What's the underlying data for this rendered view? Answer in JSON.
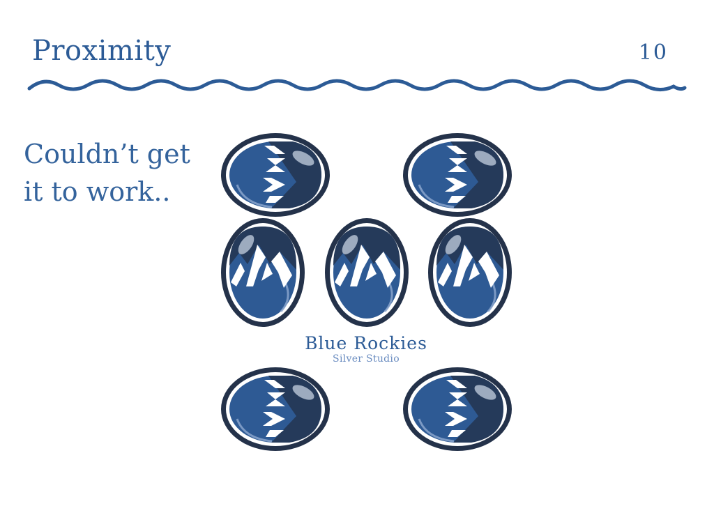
{
  "slide": {
    "title": "Proximity",
    "page_number": "10",
    "note_line1": "Couldn’t get",
    "note_line2": "it to work..",
    "accent_color": "#2c5b96"
  },
  "brand": {
    "name": "Blue Rockies",
    "subtitle": "Silver Studio"
  },
  "badges": [
    {
      "icon": "arrow-chevrons-badge-icon"
    },
    {
      "icon": "arrow-chevrons-badge-icon"
    },
    {
      "icon": "mountain-peaks-badge-icon"
    },
    {
      "icon": "mountain-peaks-badge-icon"
    },
    {
      "icon": "mountain-peaks-badge-icon"
    },
    {
      "icon": "arrow-chevrons-badge-icon"
    },
    {
      "icon": "arrow-chevrons-badge-icon"
    }
  ]
}
